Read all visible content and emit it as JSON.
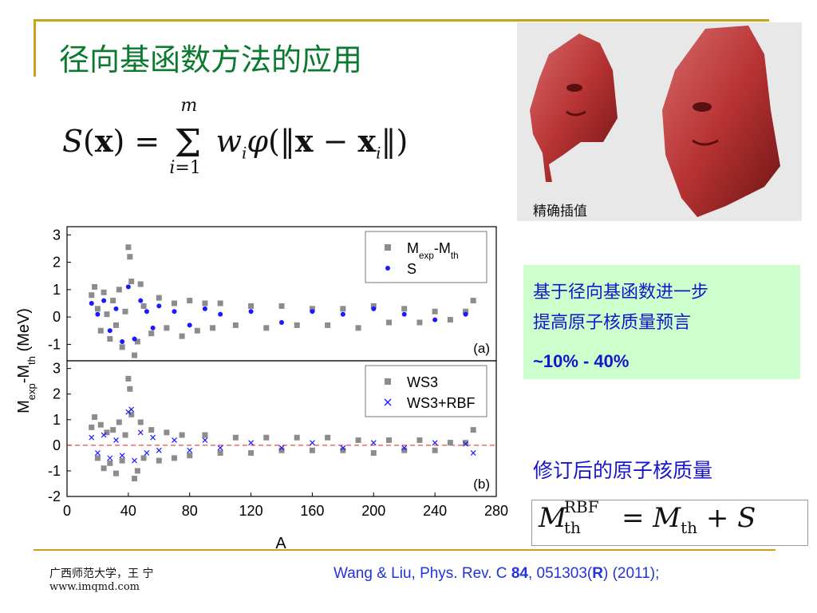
{
  "slide": {
    "title": "径向基函数方法的应用",
    "formula_rbf": "S(x) = Σ_{i=1}^{m} w_i φ(‖x − x_i‖)",
    "face_caption": "精确插值",
    "green_box": {
      "line1": "基于径向基函数进一步",
      "line2": "提高原子核质量预言",
      "line3": "~10% - 40%"
    },
    "revised_label": "修订后的原子核质量",
    "formula_mass": "M_th^RBF = M_th + S",
    "footer_org": "广西师范大学，王 宁",
    "footer_url": "www.imqmd.com",
    "reference": {
      "pre": "Wang & Liu, Phys. Rev. C ",
      "vol": "84",
      "mid": ", 051303(",
      "r": "R",
      "post": ") (2011);"
    },
    "colors": {
      "title": "#0b7a2f",
      "accent_line": "#c9a31f",
      "blue_text": "#1515cc",
      "green_box": "#ccffcc",
      "gray_mark": "#8c8c8c",
      "blue_mark": "#1a1aff"
    }
  },
  "chart_data": [
    {
      "type": "scatter",
      "panel": "(a)",
      "xlim": [
        0,
        280
      ],
      "ylim": [
        -1.6,
        3.3
      ],
      "yticks": [
        -1,
        0,
        1,
        2,
        3
      ],
      "legend": [
        "M_exp-M_th",
        "S"
      ],
      "legend_placement": "top-right",
      "ylabel": "M_exp-M_th (MeV)",
      "series": [
        {
          "name": "M_exp-M_th",
          "marker": "square",
          "color": "#8c8c8c",
          "points": [
            [
              16,
              0.8
            ],
            [
              18,
              1.1
            ],
            [
              20,
              0.3
            ],
            [
              22,
              -0.5
            ],
            [
              24,
              0.9
            ],
            [
              26,
              0.1
            ],
            [
              28,
              -0.8
            ],
            [
              30,
              0.6
            ],
            [
              32,
              -0.3
            ],
            [
              34,
              1.0
            ],
            [
              36,
              -1.1
            ],
            [
              38,
              0.2
            ],
            [
              40,
              2.55
            ],
            [
              41,
              2.2
            ],
            [
              42,
              1.3
            ],
            [
              44,
              -1.4
            ],
            [
              46,
              -0.9
            ],
            [
              48,
              1.2
            ],
            [
              50,
              0.4
            ],
            [
              55,
              -0.6
            ],
            [
              60,
              0.7
            ],
            [
              65,
              -0.4
            ],
            [
              70,
              0.5
            ],
            [
              75,
              -0.7
            ],
            [
              80,
              0.6
            ],
            [
              85,
              -0.5
            ],
            [
              90,
              0.5
            ],
            [
              95,
              -0.4
            ],
            [
              100,
              0.5
            ],
            [
              110,
              -0.3
            ],
            [
              120,
              0.4
            ],
            [
              130,
              -0.4
            ],
            [
              140,
              0.4
            ],
            [
              150,
              -0.3
            ],
            [
              160,
              0.3
            ],
            [
              170,
              -0.3
            ],
            [
              180,
              0.3
            ],
            [
              190,
              -0.4
            ],
            [
              200,
              0.4
            ],
            [
              210,
              -0.2
            ],
            [
              220,
              0.3
            ],
            [
              230,
              -0.2
            ],
            [
              240,
              0.2
            ],
            [
              250,
              -0.1
            ],
            [
              260,
              0.2
            ],
            [
              265,
              0.6
            ]
          ]
        },
        {
          "name": "S",
          "marker": "dot",
          "color": "#1a1aff",
          "points": [
            [
              16,
              0.5
            ],
            [
              20,
              0.1
            ],
            [
              24,
              0.6
            ],
            [
              28,
              -0.5
            ],
            [
              32,
              0.3
            ],
            [
              36,
              -0.9
            ],
            [
              40,
              1.1
            ],
            [
              44,
              -0.8
            ],
            [
              48,
              0.6
            ],
            [
              52,
              0.2
            ],
            [
              56,
              -0.4
            ],
            [
              60,
              0.4
            ],
            [
              70,
              0.2
            ],
            [
              80,
              -0.3
            ],
            [
              90,
              0.3
            ],
            [
              100,
              0.1
            ],
            [
              120,
              0.2
            ],
            [
              140,
              -0.2
            ],
            [
              160,
              0.2
            ],
            [
              180,
              0.1
            ],
            [
              200,
              0.3
            ],
            [
              220,
              0.1
            ],
            [
              240,
              -0.1
            ],
            [
              260,
              0.1
            ]
          ]
        }
      ]
    },
    {
      "type": "scatter",
      "panel": "(b)",
      "xlim": [
        0,
        280
      ],
      "ylim": [
        -2,
        3.3
      ],
      "xticks": [
        0,
        40,
        80,
        120,
        160,
        200,
        240,
        280
      ],
      "yticks": [
        -2,
        -1,
        0,
        1,
        2,
        3
      ],
      "xlabel": "A",
      "legend": [
        "WS3",
        "WS3+RBF"
      ],
      "legend_placement": "top-right",
      "series": [
        {
          "name": "WS3",
          "marker": "square",
          "color": "#8c8c8c",
          "points": [
            [
              16,
              0.7
            ],
            [
              18,
              1.1
            ],
            [
              20,
              -0.5
            ],
            [
              22,
              0.8
            ],
            [
              24,
              -0.9
            ],
            [
              26,
              0.5
            ],
            [
              28,
              -0.7
            ],
            [
              30,
              0.6
            ],
            [
              32,
              -1.1
            ],
            [
              34,
              0.9
            ],
            [
              36,
              -0.6
            ],
            [
              38,
              0.4
            ],
            [
              40,
              2.6
            ],
            [
              41,
              2.2
            ],
            [
              42,
              1.2
            ],
            [
              44,
              -1.3
            ],
            [
              46,
              -1.0
            ],
            [
              48,
              0.9
            ],
            [
              50,
              -0.5
            ],
            [
              55,
              0.6
            ],
            [
              60,
              -0.6
            ],
            [
              65,
              0.5
            ],
            [
              70,
              -0.5
            ],
            [
              75,
              0.4
            ],
            [
              80,
              -0.4
            ],
            [
              90,
              0.4
            ],
            [
              100,
              -0.3
            ],
            [
              110,
              0.3
            ],
            [
              120,
              -0.3
            ],
            [
              130,
              0.3
            ],
            [
              140,
              -0.2
            ],
            [
              150,
              0.3
            ],
            [
              160,
              -0.2
            ],
            [
              170,
              0.3
            ],
            [
              180,
              -0.2
            ],
            [
              190,
              0.2
            ],
            [
              200,
              -0.3
            ],
            [
              210,
              0.2
            ],
            [
              220,
              -0.2
            ],
            [
              230,
              0.2
            ],
            [
              240,
              -0.2
            ],
            [
              250,
              0.1
            ],
            [
              260,
              0.1
            ],
            [
              265,
              0.6
            ]
          ]
        },
        {
          "name": "WS3+RBF",
          "marker": "x",
          "color": "#1a1aff",
          "points": [
            [
              16,
              0.3
            ],
            [
              20,
              -0.3
            ],
            [
              24,
              0.4
            ],
            [
              28,
              -0.5
            ],
            [
              32,
              0.2
            ],
            [
              36,
              -0.4
            ],
            [
              40,
              1.3
            ],
            [
              42,
              1.4
            ],
            [
              44,
              -0.6
            ],
            [
              48,
              0.5
            ],
            [
              52,
              -0.3
            ],
            [
              56,
              0.3
            ],
            [
              60,
              -0.2
            ],
            [
              70,
              0.2
            ],
            [
              80,
              -0.2
            ],
            [
              90,
              0.2
            ],
            [
              100,
              -0.1
            ],
            [
              120,
              0.1
            ],
            [
              140,
              -0.1
            ],
            [
              160,
              0.1
            ],
            [
              180,
              -0.1
            ],
            [
              200,
              0.1
            ],
            [
              220,
              -0.1
            ],
            [
              240,
              0.1
            ],
            [
              260,
              0.05
            ],
            [
              265,
              -0.3
            ]
          ]
        }
      ]
    }
  ]
}
